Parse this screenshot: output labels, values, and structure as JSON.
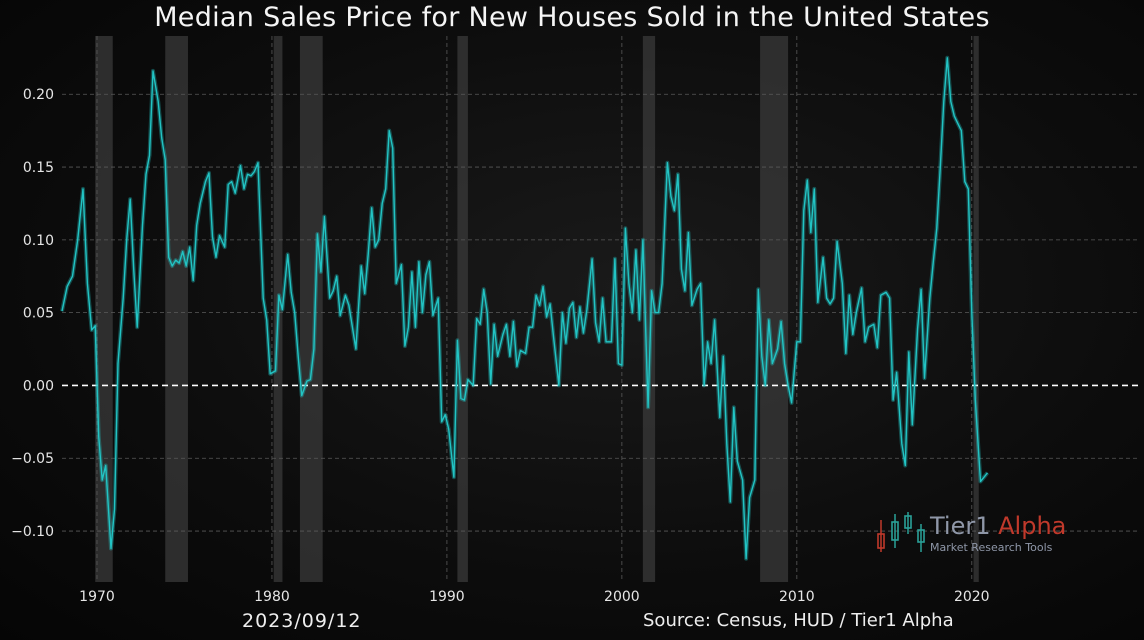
{
  "title": "Median Sales Price for New Houses Sold in the United States",
  "date_label": "2023/09/12",
  "source_label": "Source: Census, HUD / Tier1 Alpha",
  "logo": {
    "name_part1": "Tier1",
    "name_part2": "Alpha",
    "tagline": "Market  Research Tools"
  },
  "colors": {
    "line": "#22c4c4",
    "zero_line": "#ffffff",
    "recession": "#3a3a3a",
    "logo_red": "#c0392b",
    "logo_teal": "#2aa198",
    "logo_gray": "#8f97a8"
  },
  "chart_data": {
    "type": "line",
    "title": "Median Sales Price for New Houses Sold in the United States",
    "xlabel": "",
    "ylabel": "",
    "xlim": [
      1968,
      2029.5
    ],
    "ylim": [
      -0.135,
      0.24
    ],
    "grid": true,
    "xticks": [
      1970,
      1980,
      1990,
      2000,
      2010,
      2020
    ],
    "yticks": [
      -0.1,
      -0.05,
      0.0,
      0.05,
      0.1,
      0.15,
      0.2
    ],
    "ytick_labels": [
      "−0.10",
      "−0.05",
      "0.00",
      "0.05",
      "0.10",
      "0.15",
      "0.20"
    ],
    "reference_line": {
      "y": 0.0,
      "style": "dashed"
    },
    "recessions": [
      [
        1969.9,
        1970.9
      ],
      [
        1973.9,
        1975.2
      ],
      [
        1980.1,
        1980.6
      ],
      [
        1981.6,
        1982.9
      ],
      [
        1990.6,
        1991.2
      ],
      [
        2001.2,
        2001.9
      ],
      [
        2007.9,
        2009.5
      ],
      [
        2020.1,
        2020.4
      ]
    ],
    "series": [
      {
        "values": [
          [
            1968.0,
            0.051
          ],
          [
            1968.3,
            0.068
          ],
          [
            1968.6,
            0.075
          ],
          [
            1968.9,
            0.1
          ],
          [
            1969.2,
            0.135
          ],
          [
            1969.45,
            0.07
          ],
          [
            1969.7,
            0.038
          ],
          [
            1969.9,
            0.041
          ],
          [
            1970.1,
            -0.035
          ],
          [
            1970.3,
            -0.065
          ],
          [
            1970.5,
            -0.055
          ],
          [
            1970.8,
            -0.112
          ],
          [
            1971.0,
            -0.085
          ],
          [
            1971.2,
            0.015
          ],
          [
            1971.5,
            0.06
          ],
          [
            1971.7,
            0.1
          ],
          [
            1971.9,
            0.128
          ],
          [
            1972.1,
            0.08
          ],
          [
            1972.3,
            0.04
          ],
          [
            1972.6,
            0.11
          ],
          [
            1972.8,
            0.145
          ],
          [
            1973.0,
            0.158
          ],
          [
            1973.2,
            0.216
          ],
          [
            1973.5,
            0.195
          ],
          [
            1973.7,
            0.17
          ],
          [
            1973.9,
            0.155
          ],
          [
            1974.1,
            0.088
          ],
          [
            1974.3,
            0.082
          ],
          [
            1974.5,
            0.086
          ],
          [
            1974.7,
            0.084
          ],
          [
            1974.9,
            0.092
          ],
          [
            1975.1,
            0.082
          ],
          [
            1975.3,
            0.095
          ],
          [
            1975.5,
            0.072
          ],
          [
            1975.7,
            0.11
          ],
          [
            1975.9,
            0.125
          ],
          [
            1976.2,
            0.14
          ],
          [
            1976.4,
            0.146
          ],
          [
            1976.6,
            0.102
          ],
          [
            1976.8,
            0.088
          ],
          [
            1977.0,
            0.103
          ],
          [
            1977.3,
            0.095
          ],
          [
            1977.5,
            0.138
          ],
          [
            1977.7,
            0.14
          ],
          [
            1977.9,
            0.132
          ],
          [
            1978.2,
            0.151
          ],
          [
            1978.4,
            0.135
          ],
          [
            1978.6,
            0.145
          ],
          [
            1978.8,
            0.144
          ],
          [
            1979.0,
            0.147
          ],
          [
            1979.2,
            0.153
          ],
          [
            1979.5,
            0.06
          ],
          [
            1979.7,
            0.045
          ],
          [
            1979.9,
            0.008
          ],
          [
            1980.2,
            0.01
          ],
          [
            1980.4,
            0.062
          ],
          [
            1980.6,
            0.052
          ],
          [
            1980.9,
            0.09
          ],
          [
            1981.1,
            0.064
          ],
          [
            1981.3,
            0.05
          ],
          [
            1981.5,
            0.02
          ],
          [
            1981.7,
            -0.007
          ],
          [
            1982.0,
            0.003
          ],
          [
            1982.2,
            0.004
          ],
          [
            1982.4,
            0.025
          ],
          [
            1982.6,
            0.104
          ],
          [
            1982.8,
            0.078
          ],
          [
            1983.0,
            0.116
          ],
          [
            1983.3,
            0.06
          ],
          [
            1983.5,
            0.065
          ],
          [
            1983.7,
            0.075
          ],
          [
            1983.9,
            0.048
          ],
          [
            1984.2,
            0.062
          ],
          [
            1984.4,
            0.055
          ],
          [
            1984.6,
            0.04
          ],
          [
            1984.8,
            0.025
          ],
          [
            1985.1,
            0.082
          ],
          [
            1985.3,
            0.063
          ],
          [
            1985.5,
            0.09
          ],
          [
            1985.7,
            0.122
          ],
          [
            1985.9,
            0.095
          ],
          [
            1986.1,
            0.1
          ],
          [
            1986.3,
            0.125
          ],
          [
            1986.5,
            0.135
          ],
          [
            1986.7,
            0.175
          ],
          [
            1986.9,
            0.163
          ],
          [
            1987.1,
            0.07
          ],
          [
            1987.4,
            0.083
          ],
          [
            1987.6,
            0.027
          ],
          [
            1987.8,
            0.04
          ],
          [
            1988.0,
            0.078
          ],
          [
            1988.2,
            0.04
          ],
          [
            1988.4,
            0.085
          ],
          [
            1988.6,
            0.05
          ],
          [
            1988.8,
            0.076
          ],
          [
            1989.0,
            0.085
          ],
          [
            1989.2,
            0.048
          ],
          [
            1989.5,
            0.06
          ],
          [
            1989.7,
            -0.025
          ],
          [
            1989.9,
            -0.02
          ],
          [
            1990.1,
            -0.03
          ],
          [
            1990.4,
            -0.063
          ],
          [
            1990.6,
            0.031
          ],
          [
            1990.8,
            -0.009
          ],
          [
            1991.0,
            -0.01
          ],
          [
            1991.2,
            0.004
          ],
          [
            1991.5,
            0.0
          ],
          [
            1991.7,
            0.046
          ],
          [
            1991.9,
            0.042
          ],
          [
            1992.1,
            0.066
          ],
          [
            1992.3,
            0.05
          ],
          [
            1992.5,
            0.001
          ],
          [
            1992.7,
            0.042
          ],
          [
            1992.9,
            0.02
          ],
          [
            1993.2,
            0.035
          ],
          [
            1993.4,
            0.042
          ],
          [
            1993.6,
            0.02
          ],
          [
            1993.8,
            0.044
          ],
          [
            1994.0,
            0.013
          ],
          [
            1994.2,
            0.024
          ],
          [
            1994.5,
            0.022
          ],
          [
            1994.7,
            0.04
          ],
          [
            1994.9,
            0.04
          ],
          [
            1995.1,
            0.062
          ],
          [
            1995.3,
            0.055
          ],
          [
            1995.5,
            0.068
          ],
          [
            1995.7,
            0.047
          ],
          [
            1995.9,
            0.056
          ],
          [
            1996.1,
            0.033
          ],
          [
            1996.4,
            0.0
          ],
          [
            1996.6,
            0.05
          ],
          [
            1996.8,
            0.029
          ],
          [
            1997.0,
            0.053
          ],
          [
            1997.2,
            0.057
          ],
          [
            1997.4,
            0.033
          ],
          [
            1997.6,
            0.054
          ],
          [
            1997.8,
            0.036
          ],
          [
            1998.0,
            0.052
          ],
          [
            1998.3,
            0.087
          ],
          [
            1998.5,
            0.043
          ],
          [
            1998.7,
            0.03
          ],
          [
            1998.9,
            0.06
          ],
          [
            1999.1,
            0.03
          ],
          [
            1999.4,
            0.03
          ],
          [
            1999.6,
            0.087
          ],
          [
            1999.8,
            0.015
          ],
          [
            2000.0,
            0.014
          ],
          [
            2000.2,
            0.108
          ],
          [
            2000.4,
            0.07
          ],
          [
            2000.6,
            0.05
          ],
          [
            2000.8,
            0.093
          ],
          [
            2001.0,
            0.045
          ],
          [
            2001.2,
            0.1
          ],
          [
            2001.5,
            -0.015
          ],
          [
            2001.7,
            0.065
          ],
          [
            2001.9,
            0.05
          ],
          [
            2002.1,
            0.05
          ],
          [
            2002.3,
            0.07
          ],
          [
            2002.6,
            0.153
          ],
          [
            2002.8,
            0.13
          ],
          [
            2003.0,
            0.12
          ],
          [
            2003.2,
            0.145
          ],
          [
            2003.4,
            0.08
          ],
          [
            2003.6,
            0.065
          ],
          [
            2003.8,
            0.105
          ],
          [
            2004.0,
            0.055
          ],
          [
            2004.3,
            0.066
          ],
          [
            2004.5,
            0.07
          ],
          [
            2004.7,
            0.0
          ],
          [
            2004.9,
            0.03
          ],
          [
            2005.1,
            0.015
          ],
          [
            2005.3,
            0.045
          ],
          [
            2005.6,
            -0.022
          ],
          [
            2005.8,
            0.02
          ],
          [
            2006.0,
            -0.04
          ],
          [
            2006.2,
            -0.08
          ],
          [
            2006.4,
            -0.015
          ],
          [
            2006.6,
            -0.052
          ],
          [
            2006.9,
            -0.065
          ],
          [
            2007.1,
            -0.119
          ],
          [
            2007.3,
            -0.077
          ],
          [
            2007.6,
            -0.065
          ],
          [
            2007.8,
            0.066
          ],
          [
            2008.0,
            0.02
          ],
          [
            2008.2,
            0.0
          ],
          [
            2008.4,
            0.045
          ],
          [
            2008.6,
            0.015
          ],
          [
            2008.9,
            0.025
          ],
          [
            2009.1,
            0.044
          ],
          [
            2009.3,
            0.015
          ],
          [
            2009.5,
            0.0
          ],
          [
            2009.7,
            -0.012
          ],
          [
            2010.0,
            0.03
          ],
          [
            2010.2,
            0.03
          ],
          [
            2010.4,
            0.12
          ],
          [
            2010.6,
            0.141
          ],
          [
            2010.8,
            0.105
          ],
          [
            2011.0,
            0.135
          ],
          [
            2011.2,
            0.057
          ],
          [
            2011.5,
            0.088
          ],
          [
            2011.7,
            0.06
          ],
          [
            2011.9,
            0.056
          ],
          [
            2012.1,
            0.06
          ],
          [
            2012.3,
            0.099
          ],
          [
            2012.6,
            0.07
          ],
          [
            2012.8,
            0.022
          ],
          [
            2013.0,
            0.062
          ],
          [
            2013.2,
            0.035
          ],
          [
            2013.4,
            0.05
          ],
          [
            2013.7,
            0.067
          ],
          [
            2013.9,
            0.03
          ],
          [
            2014.1,
            0.04
          ],
          [
            2014.4,
            0.042
          ],
          [
            2014.6,
            0.026
          ],
          [
            2014.8,
            0.062
          ],
          [
            2015.1,
            0.064
          ],
          [
            2015.3,
            0.06
          ],
          [
            2015.5,
            -0.01
          ],
          [
            2015.7,
            0.009
          ],
          [
            2016.0,
            -0.04
          ],
          [
            2016.2,
            -0.055
          ],
          [
            2016.4,
            0.023
          ],
          [
            2016.6,
            -0.027
          ],
          [
            2016.9,
            0.039
          ],
          [
            2017.1,
            0.066
          ],
          [
            2017.3,
            0.005
          ],
          [
            2017.6,
            0.06
          ],
          [
            2017.8,
            0.085
          ],
          [
            2018.0,
            0.108
          ],
          [
            2018.2,
            0.15
          ],
          [
            2018.4,
            0.195
          ],
          [
            2018.6,
            0.225
          ],
          [
            2018.8,
            0.195
          ],
          [
            2019.0,
            0.185
          ],
          [
            2019.2,
            0.18
          ],
          [
            2019.4,
            0.175
          ],
          [
            2019.6,
            0.14
          ],
          [
            2019.8,
            0.135
          ],
          [
            2020.0,
            0.05
          ],
          [
            2020.2,
            -0.01
          ],
          [
            2020.5,
            -0.066
          ],
          [
            2020.7,
            -0.063
          ],
          [
            2020.9,
            -0.06
          ]
        ]
      }
    ]
  }
}
